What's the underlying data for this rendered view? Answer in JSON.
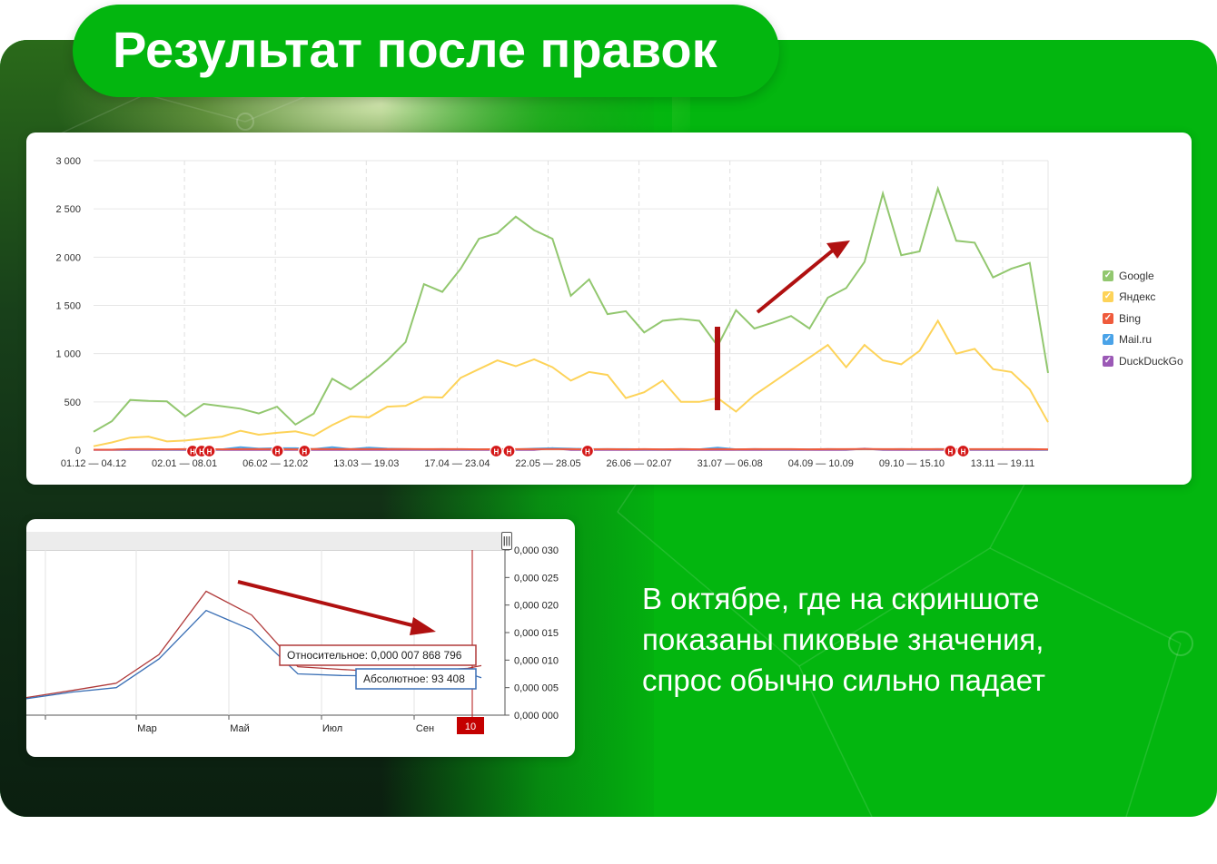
{
  "title": "Результат после правок",
  "caption_lines": [
    "В октябре, где на скриншоте",
    "показаны пиковые значения,",
    "спрос обычно сильно падает"
  ],
  "chart_data": [
    {
      "type": "line",
      "y_ticks": [
        "3 000",
        "2 500",
        "2 000",
        "1 500",
        "1 000",
        "500",
        "0"
      ],
      "ylim": [
        0,
        3000
      ],
      "x_tick_labels": [
        "01.12 — 04.12",
        "02.01 — 08.01",
        "06.02 — 12.02",
        "13.03 — 19.03",
        "17.04 — 23.04",
        "22.05 — 28.05",
        "26.06 — 02.07",
        "31.07 — 06.08",
        "04.09 — 10.09",
        "09.10 — 15.10",
        "13.11 — 19.11"
      ],
      "series": [
        {
          "name": "Google",
          "color": "#92c76f",
          "values": [
            190,
            300,
            520,
            510,
            505,
            350,
            480,
            455,
            430,
            380,
            450,
            265,
            380,
            740,
            630,
            770,
            930,
            1120,
            1720,
            1640,
            1880,
            2190,
            2250,
            2420,
            2280,
            2190,
            1600,
            1770,
            1410,
            1440,
            1220,
            1340,
            1360,
            1340,
            1080,
            1450,
            1260,
            1320,
            1390,
            1260,
            1580,
            1680,
            1950,
            2660,
            2020,
            2060,
            2710,
            2170,
            2150,
            1790,
            1880,
            1940,
            800
          ]
        },
        {
          "name": "Яндекс",
          "color": "#fdd359",
          "values": [
            40,
            80,
            130,
            140,
            90,
            100,
            120,
            140,
            200,
            160,
            180,
            195,
            150,
            260,
            350,
            340,
            450,
            460,
            550,
            545,
            750,
            840,
            930,
            870,
            940,
            860,
            720,
            810,
            780,
            540,
            600,
            720,
            500,
            500,
            540,
            400,
            570,
            700,
            830,
            960,
            1090,
            860,
            1090,
            930,
            890,
            1030,
            1340,
            1000,
            1050,
            840,
            810,
            630,
            290
          ]
        },
        {
          "name": "Bing",
          "color": "#ef5b3c",
          "values": [
            5,
            5,
            10,
            10,
            8,
            10,
            10,
            8,
            10,
            10,
            10,
            8,
            12,
            10,
            10,
            10,
            10,
            12,
            10,
            10,
            10,
            8,
            10,
            10,
            10,
            10,
            10,
            8,
            10,
            8,
            10,
            8,
            10,
            8,
            10,
            8,
            10,
            10,
            10,
            8,
            10,
            10,
            12,
            10,
            10,
            10,
            10,
            10,
            10,
            10,
            10,
            10,
            8
          ]
        },
        {
          "name": "Mail.ru",
          "color": "#4aa3e8",
          "values": [
            5,
            5,
            8,
            8,
            6,
            8,
            8,
            8,
            30,
            15,
            20,
            20,
            10,
            30,
            10,
            25,
            15,
            10,
            8,
            10,
            8,
            8,
            10,
            8,
            15,
            20,
            15,
            10,
            10,
            10,
            8,
            8,
            10,
            8,
            25,
            8,
            10,
            8,
            8,
            8,
            10,
            8,
            10,
            8,
            10,
            8,
            10,
            8,
            8,
            8,
            8,
            8,
            5
          ]
        },
        {
          "name": "DuckDuckGo",
          "color": "#9b59b6",
          "values": [
            2,
            2,
            3,
            3,
            2,
            3,
            2,
            3,
            3,
            2,
            2,
            3,
            2,
            3,
            2,
            3,
            2,
            3,
            2,
            3,
            2,
            3,
            2,
            3,
            2,
            20,
            3,
            2,
            3,
            2,
            3,
            2,
            3,
            2,
            3,
            2,
            3,
            2,
            3,
            2,
            3,
            2,
            15,
            2,
            3,
            2,
            3,
            2,
            3,
            2,
            3,
            2,
            2
          ]
        }
      ],
      "marker_label": "Н",
      "markers_at_index": [
        7.7,
        8.4,
        9.0,
        14.3,
        16.4,
        31.3,
        32.3,
        38.4,
        66.6,
        67.6
      ]
    },
    {
      "type": "line",
      "y_ticks": [
        "0,000 030",
        "0,000 025",
        "0,000 020",
        "0,000 015",
        "0,000 010",
        "0,000 005",
        "0,000 000"
      ],
      "x_tick_labels": [
        "Мар",
        "Май",
        "Июл",
        "Сен"
      ],
      "marker_label": "10",
      "series": [
        {
          "name": "Относительное",
          "color": "#b03a3a",
          "values": [
            3.2e-06,
            4.5e-06,
            5.8e-06,
            1.1e-05,
            2.25e-05,
            1.82e-05,
            8.8e-06,
            8.3e-06,
            7.9e-06,
            8e-06,
            8.5e-06,
            9e-06
          ]
        },
        {
          "name": "Абсолютное",
          "color": "#3a6fb5",
          "values": [
            3e-06,
            4.2e-06,
            5e-06,
            1.02e-05,
            1.9e-05,
            1.55e-05,
            7.5e-06,
            7.2e-06,
            7.1e-06,
            7.2e-06,
            7.6e-06,
            6.8e-06
          ]
        }
      ],
      "tooltip_relative": "Относительное: 0,000 007 868 796",
      "tooltip_absolute": "Абсолютное: 93 408"
    }
  ]
}
